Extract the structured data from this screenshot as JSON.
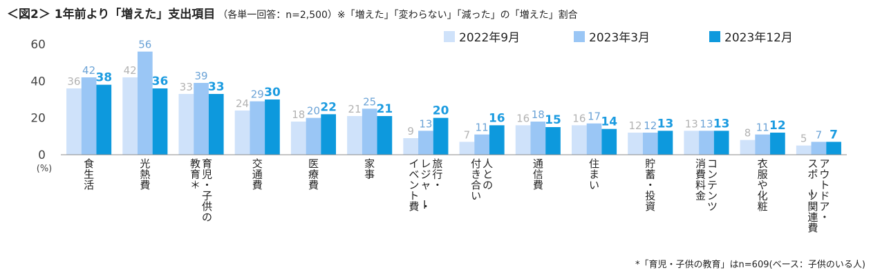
{
  "title": {
    "main": "＜図2＞ 1年前より「増えた」支出項目",
    "sub": "（各単一回答：n=2,500）※「増えた」「変わらない」「減った」の「増えた」割合"
  },
  "footnote": "*「育児・子供の教育」はn=609(ベース：子供のいる人)",
  "colors": {
    "series": [
      "#cfe2fa",
      "#9ac6f5",
      "#0d99dd"
    ],
    "labels": [
      "#b2b2b2",
      "#6aa2d6",
      "#1b9be0"
    ],
    "axis": "#888888",
    "tick_text": "#444444"
  },
  "chart_data": {
    "type": "bar",
    "ylabel": "(%)",
    "ylim": [
      0,
      60
    ],
    "yticks": [
      0,
      20,
      40,
      60
    ],
    "grid": false,
    "legend_position": "top",
    "categories": [
      "食生活",
      "光熱費",
      "育児・子供の教育＊",
      "交通費",
      "医療費",
      "家事",
      "旅行・レジャー・イベント費",
      "人との付き合い",
      "通信費",
      "住まい",
      "貯蓄・投資",
      "コンテンツ消費料金",
      "衣服や化粧",
      "アウトドア・スポーツ関連費"
    ],
    "category_lines": [
      [
        "食生活"
      ],
      [
        "光熱費"
      ],
      [
        "育児・子供の",
        "教育＊"
      ],
      [
        "交通費"
      ],
      [
        "医療費"
      ],
      [
        "家事"
      ],
      [
        "旅行・",
        "レジャー・",
        "イベント費"
      ],
      [
        "人との",
        "付き合い"
      ],
      [
        "通信費"
      ],
      [
        "住まい"
      ],
      [
        "貯蓄・投資"
      ],
      [
        "コンテンツ",
        "消費料金"
      ],
      [
        "衣服や化粧"
      ],
      [
        "アウトドア・",
        "スポーツ関連費"
      ]
    ],
    "series": [
      {
        "name": "2022年9月",
        "values": [
          36,
          42,
          33,
          24,
          18,
          21,
          9,
          7,
          16,
          16,
          12,
          13,
          8,
          5
        ]
      },
      {
        "name": "2023年3月",
        "values": [
          42,
          56,
          39,
          29,
          20,
          25,
          13,
          11,
          18,
          17,
          12,
          13,
          11,
          7
        ]
      },
      {
        "name": "2023年12月",
        "values": [
          38,
          36,
          33,
          30,
          22,
          21,
          20,
          16,
          15,
          14,
          13,
          13,
          12,
          7
        ]
      }
    ]
  }
}
